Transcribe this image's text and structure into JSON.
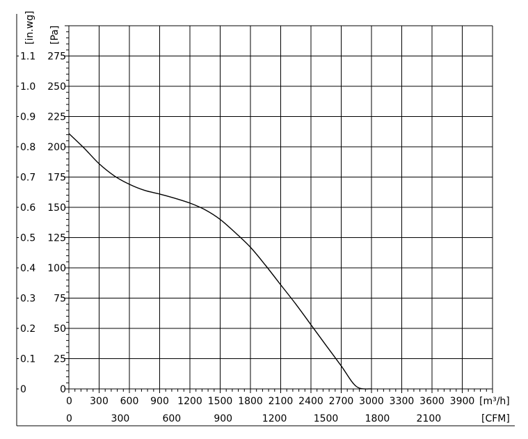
{
  "chart_data": {
    "type": "line",
    "title": "",
    "grid": true,
    "x_primary": {
      "unit": "m³/h",
      "ticks": [
        0,
        300,
        600,
        900,
        1200,
        1500,
        1800,
        2100,
        2400,
        2700,
        3000,
        3300,
        3600,
        3900
      ],
      "range": [
        0,
        4200
      ]
    },
    "x_secondary": {
      "unit": "CFM",
      "ticks": [
        0,
        300,
        600,
        900,
        1200,
        1500,
        1800,
        2100
      ],
      "range": [
        0,
        2472
      ]
    },
    "y_primary": {
      "unit": "Pa",
      "ticks": [
        0,
        25,
        50,
        75,
        100,
        125,
        150,
        175,
        200,
        225,
        250,
        275
      ],
      "range": [
        0,
        300
      ]
    },
    "y_secondary": {
      "unit": "in.wg",
      "ticks": [
        "0",
        "0.1",
        "0.2",
        "0.3",
        "0.4",
        "0.5",
        "0.6",
        "0.7",
        "0.8",
        "0.9",
        "1.0",
        "1.1"
      ]
    },
    "series": [
      {
        "x": [
          0,
          150,
          300,
          450,
          600,
          750,
          900,
          1050,
          1200,
          1350,
          1500,
          1650,
          1800,
          1950,
          2100,
          2250,
          2400,
          2550,
          2700,
          2850,
          3000,
          3150
        ],
        "y": [
          211,
          199,
          186,
          176,
          169,
          164,
          161,
          157.5,
          153.5,
          148,
          140,
          129,
          117,
          102,
          86,
          70,
          53,
          36,
          19,
          2,
          0,
          0
        ]
      }
    ]
  },
  "labels": {
    "x_unit_primary": "[m³/h]",
    "x_unit_secondary": "[CFM]",
    "y_unit_primary": "[Pa]",
    "y_unit_secondary": "[in.wg]"
  }
}
